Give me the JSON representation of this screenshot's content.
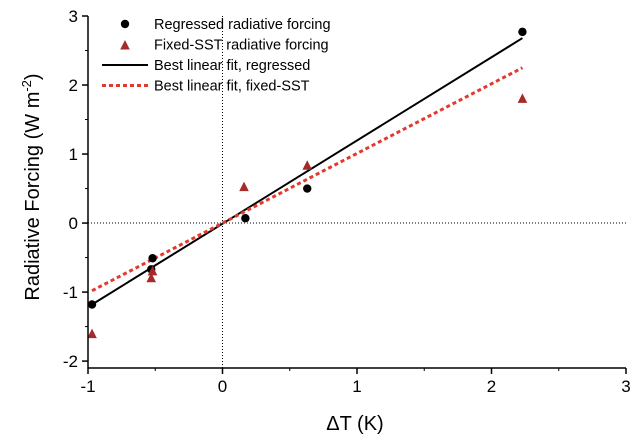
{
  "chart_data": {
    "type": "scatter",
    "xlabel": "ΔT (K)",
    "ylabel": "Radiative Forcing (W m",
    "ylabel_sup": "-2",
    "ylabel_close": ")",
    "xlim": [
      -1,
      3
    ],
    "ylim": [
      -2.1,
      3
    ],
    "x_ticks": [
      -1,
      0,
      1,
      2,
      3
    ],
    "y_ticks": [
      -2,
      -1,
      0,
      1,
      2,
      3
    ],
    "x_tick_labels": [
      "-1",
      "0",
      "1",
      "2",
      "3"
    ],
    "y_tick_labels": [
      "-2",
      "-1",
      "0",
      "1",
      "2",
      "3"
    ],
    "reference_lines": {
      "x": 0,
      "y": 0,
      "style": "dotted"
    },
    "legend_position": "top-left",
    "series": [
      {
        "name": "Regressed radiative forcing",
        "type": "scatter",
        "marker": "circle",
        "color": "#000000",
        "points": [
          [
            -0.97,
            -1.18
          ],
          [
            -0.52,
            -0.51
          ],
          [
            -0.53,
            -0.67
          ],
          [
            0.17,
            0.07
          ],
          [
            0.63,
            0.5
          ],
          [
            2.23,
            2.77
          ]
        ]
      },
      {
        "name": "Fixed-SST radiative forcing",
        "type": "scatter",
        "marker": "triangle",
        "color": "#a52a2a",
        "points": [
          [
            -0.97,
            -1.61
          ],
          [
            -0.53,
            -0.8
          ],
          [
            -0.52,
            -0.7
          ],
          [
            0.16,
            0.52
          ],
          [
            0.63,
            0.83
          ],
          [
            2.23,
            1.8
          ]
        ]
      },
      {
        "name": "Best linear fit, regressed",
        "type": "line",
        "style": "solid",
        "color": "#000000",
        "points": [
          [
            -0.97,
            -1.18
          ],
          [
            2.23,
            2.68
          ]
        ]
      },
      {
        "name": "Best linear fit, fixed-SST",
        "type": "line",
        "style": "dotted",
        "color": "#e03b2e",
        "points": [
          [
            -0.97,
            -0.98
          ],
          [
            2.23,
            2.25
          ]
        ]
      }
    ]
  }
}
